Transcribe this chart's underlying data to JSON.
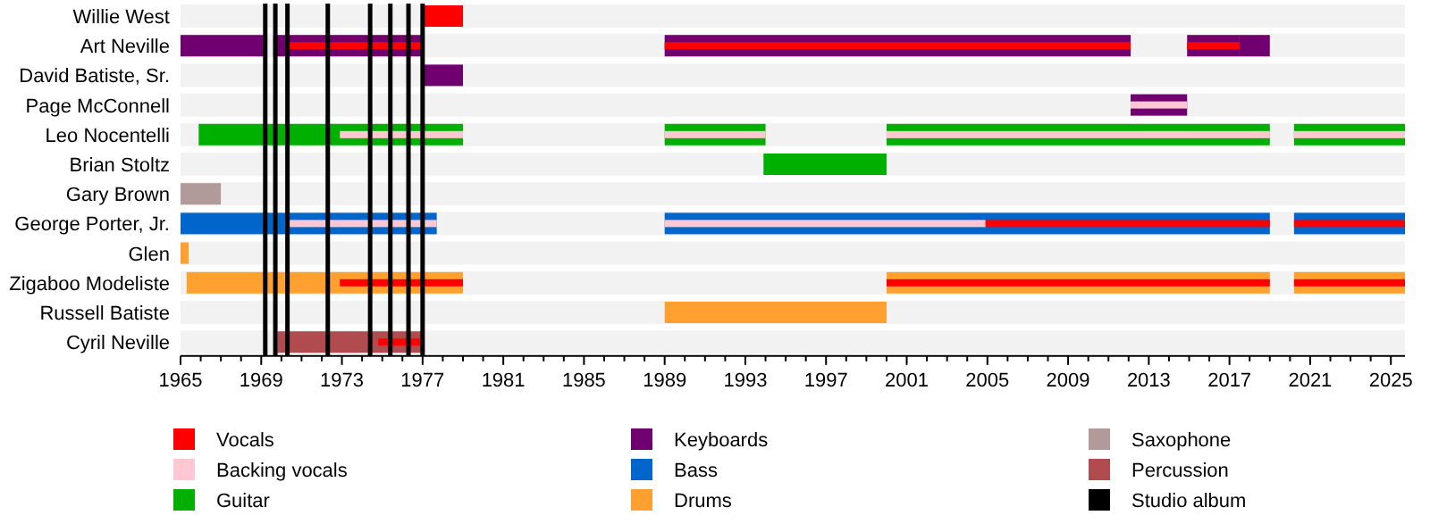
{
  "chart_data": {
    "type": "bar",
    "orientation": "horizontal",
    "legend": "bottom",
    "categories": [
      "Willie West",
      "Art Neville",
      "David Batiste, Sr.",
      "Page McConnell",
      "Leo Nocentelli",
      "Brian Stoltz",
      "Gary Brown",
      "George Porter, Jr.",
      "Glen",
      "Zigaboo Modeliste",
      "Russell Batiste",
      "Cyril Neville"
    ],
    "xlim": [
      1965,
      2025.7
    ],
    "xticks": [
      1965,
      {
        "value": 1966,
        "label": null
      },
      {
        "value": 1967,
        "label": null
      },
      {
        "value": 1968,
        "label": null
      },
      1969,
      {
        "value": 1970,
        "label": null
      },
      {
        "value": 1971,
        "label": null
      },
      {
        "value": 1972,
        "label": null
      },
      1973,
      {
        "value": 1974,
        "label": null
      },
      {
        "value": 1975,
        "label": null
      },
      {
        "value": 1976,
        "label": null
      },
      1977,
      {
        "value": 1978,
        "label": null
      },
      {
        "value": 1979,
        "label": null
      },
      {
        "value": 1980,
        "label": null
      },
      1981,
      {
        "value": 1982,
        "label": null
      },
      {
        "value": 1983,
        "label": null
      },
      {
        "value": 1984,
        "label": null
      },
      1985,
      {
        "value": 1986,
        "label": null
      },
      {
        "value": 1987,
        "label": null
      },
      {
        "value": 1988,
        "label": null
      },
      1989,
      {
        "value": 1990,
        "label": null
      },
      {
        "value": 1991,
        "label": null
      },
      {
        "value": 1992,
        "label": null
      },
      1993,
      {
        "value": 1994,
        "label": null
      },
      {
        "value": 1995,
        "label": null
      },
      {
        "value": 1996,
        "label": null
      },
      1997,
      {
        "value": 1998,
        "label": null
      },
      {
        "value": 1999,
        "label": null
      },
      {
        "value": 2000,
        "label": null
      },
      2001,
      {
        "value": 2002,
        "label": null
      },
      {
        "value": 2003,
        "label": null
      },
      {
        "value": 2004,
        "label": null
      },
      2005,
      {
        "value": 2006,
        "label": null
      },
      {
        "value": 2007,
        "label": null
      },
      {
        "value": 2008,
        "label": null
      },
      2009,
      {
        "value": 2010,
        "label": null
      },
      {
        "value": 2011,
        "label": null
      },
      {
        "value": 2012,
        "label": null
      },
      2013,
      {
        "value": 2014,
        "label": null
      },
      {
        "value": 2015,
        "label": null
      },
      {
        "value": 2016,
        "label": null
      },
      2017,
      {
        "value": 2018,
        "label": null
      },
      {
        "value": 2019,
        "label": null
      },
      {
        "value": 2020,
        "label": null
      },
      2021,
      {
        "value": 2022,
        "label": null
      },
      {
        "value": 2023,
        "label": null
      },
      {
        "value": 2024,
        "label": null
      },
      2025
    ],
    "series": [
      {
        "name": "Vocals",
        "color": "#ff0000",
        "base": [
          1977,
          1970.2,
          null,
          null,
          null,
          null,
          null,
          2004.9,
          null,
          1972.9,
          null,
          1974.8
        ],
        "values": [
          2.0,
          6.8,
          null,
          null,
          null,
          null,
          null,
          14.1,
          null,
          6.1,
          null,
          2.2
        ]
      },
      {
        "color": "#ff0000",
        "base": [
          null,
          1989,
          null,
          null,
          null,
          null,
          null,
          2020.2,
          null,
          2000,
          null,
          null
        ],
        "values": [
          null,
          23.1,
          null,
          null,
          null,
          null,
          null,
          5.5,
          null,
          19.0,
          null,
          null
        ]
      },
      {
        "color": "#ff0000",
        "base": [
          null,
          2014.9,
          null,
          null,
          null,
          null,
          null,
          null,
          null,
          2020.2,
          null,
          null
        ],
        "values": [
          null,
          2.6,
          null,
          null,
          null,
          null,
          null,
          null,
          null,
          5.5,
          null,
          null
        ]
      },
      {
        "name": "Backing vocals",
        "color": "#ffc8d2",
        "base": [
          null,
          null,
          null,
          2012.1,
          1972.9,
          null,
          null,
          1970.2,
          null,
          null,
          null,
          null
        ],
        "values": [
          null,
          null,
          null,
          2.8,
          6.1,
          null,
          null,
          7.5,
          null,
          null,
          null,
          null
        ]
      },
      {
        "color": "#ffc8d2",
        "base": [
          null,
          null,
          null,
          null,
          1989,
          null,
          null,
          1989,
          null,
          null,
          null,
          null
        ],
        "values": [
          null,
          null,
          null,
          null,
          5.0,
          null,
          null,
          15.9,
          null,
          null,
          null,
          null
        ]
      },
      {
        "color": "#ffc8d2",
        "base": [
          null,
          null,
          null,
          null,
          2000,
          null,
          null,
          null,
          null,
          null,
          null,
          null
        ],
        "values": [
          null,
          null,
          null,
          null,
          19.0,
          null,
          null,
          null,
          null,
          null,
          null,
          null
        ]
      },
      {
        "color": "#ffc8d2",
        "base": [
          null,
          null,
          null,
          null,
          2020.2,
          null,
          null,
          null,
          null,
          null,
          null,
          null
        ],
        "values": [
          null,
          null,
          null,
          null,
          5.5,
          null,
          null,
          null,
          null,
          null,
          null,
          null
        ]
      },
      {
        "name": "Guitar",
        "color": "#00b000",
        "base": [
          null,
          null,
          null,
          null,
          1965.9,
          1993.9,
          null,
          null,
          null,
          null,
          null,
          null
        ],
        "values": [
          null,
          null,
          null,
          null,
          13.1,
          6.1,
          null,
          null,
          null,
          null,
          null,
          null
        ]
      },
      {
        "color": "#00b000",
        "base": [
          null,
          null,
          null,
          null,
          1989,
          null,
          null,
          null,
          null,
          null,
          null,
          null
        ],
        "values": [
          null,
          null,
          null,
          null,
          5.0,
          null,
          null,
          null,
          null,
          null,
          null,
          null
        ]
      },
      {
        "color": "#00b000",
        "base": [
          null,
          null,
          null,
          null,
          2000,
          null,
          null,
          null,
          null,
          null,
          null,
          null
        ],
        "values": [
          null,
          null,
          null,
          null,
          19.0,
          null,
          null,
          null,
          null,
          null,
          null,
          null
        ]
      },
      {
        "color": "#00b000",
        "base": [
          null,
          null,
          null,
          null,
          2020.2,
          null,
          null,
          null,
          null,
          null,
          null,
          null
        ],
        "values": [
          null,
          null,
          null,
          null,
          5.5,
          null,
          null,
          null,
          null,
          null,
          null,
          null
        ]
      },
      {
        "name": "Keyboards",
        "color": "#700070",
        "base": [
          null,
          1965,
          1977,
          2012.1,
          null,
          null,
          null,
          null,
          null,
          null,
          null,
          null
        ],
        "values": [
          null,
          4.2,
          2.0,
          2.8,
          null,
          null,
          null,
          null,
          null,
          null,
          null,
          null
        ]
      },
      {
        "color": "#700070",
        "base": [
          null,
          1969.6,
          null,
          null,
          null,
          null,
          null,
          null,
          null,
          null,
          null,
          null
        ],
        "values": [
          null,
          7.4,
          null,
          null,
          null,
          null,
          null,
          null,
          null,
          null,
          null,
          null
        ]
      },
      {
        "color": "#700070",
        "base": [
          null,
          1989,
          null,
          null,
          null,
          null,
          null,
          null,
          null,
          null,
          null,
          null
        ],
        "values": [
          null,
          23.1,
          null,
          null,
          null,
          null,
          null,
          null,
          null,
          null,
          null,
          null
        ]
      },
      {
        "color": "#700070",
        "base": [
          null,
          2014.9,
          null,
          null,
          null,
          null,
          null,
          null,
          null,
          null,
          null,
          null
        ],
        "values": [
          null,
          2.6,
          null,
          null,
          null,
          null,
          null,
          null,
          null,
          null,
          null,
          null
        ]
      },
      {
        "color": "#700070",
        "base": [
          null,
          2017.5,
          null,
          null,
          null,
          null,
          null,
          null,
          null,
          null,
          null,
          null
        ],
        "values": [
          null,
          1.5,
          null,
          null,
          null,
          null,
          null,
          null,
          null,
          null,
          null,
          null
        ]
      },
      {
        "name": "Bass",
        "color": "#0066cc",
        "base": [
          null,
          null,
          null,
          null,
          null,
          null,
          null,
          1965,
          null,
          null,
          null,
          null
        ],
        "values": [
          null,
          null,
          null,
          null,
          null,
          null,
          null,
          12.7,
          null,
          null,
          null,
          null
        ]
      },
      {
        "color": "#0066cc",
        "base": [
          null,
          null,
          null,
          null,
          null,
          null,
          null,
          1989,
          null,
          null,
          null,
          null
        ],
        "values": [
          null,
          null,
          null,
          null,
          null,
          null,
          null,
          30.0,
          null,
          null,
          null,
          null
        ]
      },
      {
        "color": "#0066cc",
        "base": [
          null,
          null,
          null,
          null,
          null,
          null,
          null,
          2020.2,
          null,
          null,
          null,
          null
        ],
        "values": [
          null,
          null,
          null,
          null,
          null,
          null,
          null,
          5.5,
          null,
          null,
          null,
          null
        ]
      },
      {
        "name": "Drums",
        "color": "#ffa030",
        "base": [
          null,
          null,
          null,
          null,
          null,
          null,
          null,
          null,
          1965,
          1965.3,
          1989,
          null
        ],
        "values": [
          null,
          null,
          null,
          null,
          null,
          null,
          null,
          null,
          0.4,
          13.7,
          11.0,
          null
        ]
      },
      {
        "color": "#ffa030",
        "base": [
          null,
          null,
          null,
          null,
          null,
          null,
          null,
          null,
          null,
          2000,
          null,
          null
        ],
        "values": [
          null,
          null,
          null,
          null,
          null,
          null,
          null,
          null,
          null,
          19.0,
          null,
          null
        ]
      },
      {
        "color": "#ffa030",
        "base": [
          null,
          null,
          null,
          null,
          null,
          null,
          null,
          null,
          null,
          2020.2,
          null,
          null
        ],
        "values": [
          null,
          null,
          null,
          null,
          null,
          null,
          null,
          null,
          null,
          5.5,
          null,
          null
        ]
      },
      {
        "name": "Saxophone",
        "color": "#b09a9a",
        "base": [
          null,
          null,
          null,
          null,
          null,
          null,
          1965,
          null,
          null,
          null,
          null,
          null
        ],
        "values": [
          null,
          null,
          null,
          null,
          null,
          null,
          2.0,
          null,
          null,
          null,
          null,
          null
        ]
      },
      {
        "name": "Percussion",
        "color": "#b04c50",
        "base": [
          null,
          null,
          null,
          null,
          null,
          null,
          null,
          null,
          null,
          null,
          null,
          1969.8
        ],
        "values": [
          null,
          null,
          null,
          null,
          null,
          null,
          null,
          null,
          null,
          null,
          null,
          7.2
        ]
      }
    ],
    "ref_lines": [
      {
        "axis": "x",
        "value": 1969.2,
        "label": "Studio album",
        "color": "#000000"
      },
      {
        "axis": "x",
        "value": 1969.7,
        "color": "#000000"
      },
      {
        "axis": "x",
        "value": 1970.3,
        "color": "#000000"
      },
      {
        "axis": "x",
        "value": 1972.3,
        "color": "#000000"
      },
      {
        "axis": "x",
        "value": 1974.4,
        "color": "#000000"
      },
      {
        "axis": "x",
        "value": 1975.4,
        "color": "#000000"
      },
      {
        "axis": "x",
        "value": 1976.3,
        "color": "#000000"
      },
      {
        "axis": "x",
        "value": 1977.0,
        "color": "#000000"
      }
    ]
  }
}
